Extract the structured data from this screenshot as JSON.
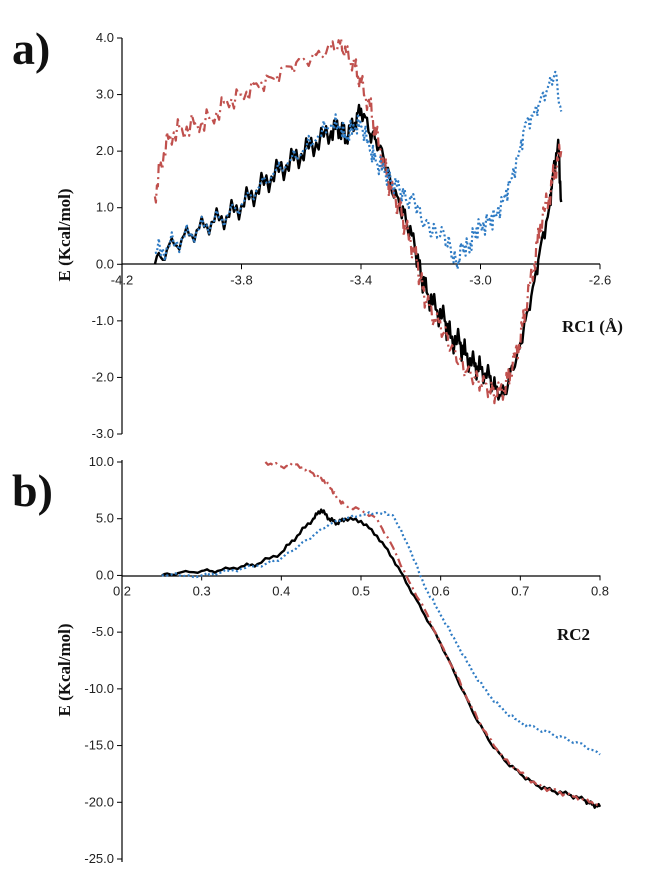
{
  "chart_data": [
    {
      "type": "line",
      "panel_label": "a)",
      "ylabel": "E (Kcal/mol)",
      "xlabel": "RC1 (Å)",
      "xlim": [
        -4.2,
        -2.6
      ],
      "ylim": [
        -3.0,
        4.0
      ],
      "x_ticks": [
        "-4.2",
        "-3.8",
        "-3.4",
        "-3.0",
        "-2.6"
      ],
      "x_tick_values": [
        -4.2,
        -3.8,
        -3.4,
        -3.0,
        -2.6
      ],
      "y_ticks": [
        "4.0",
        "3.0",
        "2.0",
        "1.0",
        "0.0",
        "-1.0",
        "-2.0",
        "-3.0"
      ],
      "y_tick_values": [
        4.0,
        3.0,
        2.0,
        1.0,
        0.0,
        -1.0,
        -2.0,
        -3.0
      ],
      "grid": false,
      "series": [
        {
          "style": "solid",
          "color": "#000000",
          "x": [
            -4.09,
            -4.05,
            -4.0,
            -3.95,
            -3.9,
            -3.85,
            -3.8,
            -3.75,
            -3.7,
            -3.65,
            -3.6,
            -3.55,
            -3.5,
            -3.47,
            -3.45,
            -3.42,
            -3.4,
            -3.37,
            -3.35,
            -3.32,
            -3.3,
            -3.27,
            -3.25,
            -3.22,
            -3.2,
            -3.18,
            -3.15,
            -3.12,
            -3.1,
            -3.07,
            -3.05,
            -3.02,
            -3.0,
            -2.97,
            -2.95,
            -2.92,
            -2.9,
            -2.87,
            -2.85,
            -2.82,
            -2.8,
            -2.77,
            -2.76,
            -2.74,
            -2.73
          ],
          "y": [
            0.0,
            0.25,
            0.45,
            0.6,
            0.75,
            0.85,
            1.05,
            1.3,
            1.55,
            1.75,
            1.95,
            2.15,
            2.35,
            2.4,
            2.25,
            2.5,
            2.75,
            2.3,
            2.2,
            1.8,
            1.4,
            1.0,
            0.8,
            0.3,
            -0.2,
            -0.5,
            -0.8,
            -1.0,
            -1.3,
            -1.4,
            -1.6,
            -1.8,
            -1.85,
            -2.0,
            -2.2,
            -2.3,
            -1.9,
            -1.5,
            -1.0,
            -0.3,
            0.3,
            1.0,
            1.5,
            2.2,
            1.1
          ]
        },
        {
          "style": "dashdot",
          "color": "#c0504d",
          "x": [
            -4.09,
            -4.07,
            -4.04,
            -4.0,
            -3.95,
            -3.9,
            -3.85,
            -3.8,
            -3.75,
            -3.7,
            -3.65,
            -3.6,
            -3.55,
            -3.5,
            -3.47,
            -3.45,
            -3.42,
            -3.4,
            -3.37,
            -3.35,
            -3.32,
            -3.3,
            -3.27,
            -3.25,
            -3.22,
            -3.2,
            -3.18,
            -3.15,
            -3.12,
            -3.1,
            -3.07,
            -3.05,
            -3.02,
            -3.0,
            -2.97,
            -2.95,
            -2.92,
            -2.9,
            -2.87,
            -2.85,
            -2.82,
            -2.8,
            -2.77,
            -2.75,
            -2.73
          ],
          "y": [
            1.2,
            1.8,
            2.3,
            2.4,
            2.5,
            2.6,
            2.9,
            3.0,
            3.2,
            3.3,
            3.5,
            3.6,
            3.7,
            3.85,
            3.9,
            3.75,
            3.5,
            3.2,
            2.8,
            2.3,
            1.7,
            1.3,
            1.0,
            0.6,
            0.2,
            -0.3,
            -0.7,
            -1.0,
            -1.2,
            -1.5,
            -1.7,
            -1.9,
            -2.0,
            -2.1,
            -2.2,
            -2.3,
            -2.2,
            -1.9,
            -1.4,
            -0.8,
            0.0,
            0.7,
            1.2,
            1.7,
            2.0
          ]
        },
        {
          "style": "dotted",
          "color": "#2e7bc4",
          "x": [
            -4.09,
            -4.05,
            -4.0,
            -3.95,
            -3.9,
            -3.85,
            -3.8,
            -3.75,
            -3.7,
            -3.65,
            -3.6,
            -3.55,
            -3.5,
            -3.47,
            -3.45,
            -3.42,
            -3.4,
            -3.37,
            -3.35,
            -3.32,
            -3.3,
            -3.27,
            -3.25,
            -3.22,
            -3.2,
            -3.17,
            -3.15,
            -3.12,
            -3.1,
            -3.08,
            -3.06,
            -3.04,
            -3.02,
            -3.0,
            -2.97,
            -2.95,
            -2.92,
            -2.9,
            -2.87,
            -2.85,
            -2.82,
            -2.8,
            -2.77,
            -2.75,
            -2.73
          ],
          "y": [
            0.2,
            0.3,
            0.45,
            0.6,
            0.75,
            0.85,
            1.05,
            1.3,
            1.55,
            1.75,
            1.95,
            2.2,
            2.45,
            2.4,
            2.2,
            2.4,
            2.45,
            2.0,
            1.8,
            1.6,
            1.45,
            1.3,
            1.15,
            1.1,
            0.85,
            0.6,
            0.6,
            0.5,
            0.3,
            0.0,
            0.35,
            0.3,
            0.6,
            0.7,
            0.8,
            0.9,
            1.2,
            1.5,
            2.0,
            2.5,
            2.7,
            2.9,
            3.2,
            3.4,
            2.7
          ]
        }
      ]
    },
    {
      "type": "line",
      "panel_label": "b)",
      "ylabel": "E (Kcal/mol)",
      "xlabel": "RC2",
      "xlim": [
        0.2,
        0.8
      ],
      "ylim": [
        -25.0,
        10.0
      ],
      "x_ticks": [
        "0.2",
        "0.3",
        "0.4",
        "0.5",
        "0.6",
        "0.7",
        "0.8"
      ],
      "x_tick_values": [
        0.2,
        0.3,
        0.4,
        0.5,
        0.6,
        0.7,
        0.8
      ],
      "y_ticks": [
        "10.0",
        "5.0",
        "0.0",
        "-5.0",
        "-10.0",
        "-15.0",
        "-20.0",
        "-25.0"
      ],
      "y_tick_values": [
        10.0,
        5.0,
        0.0,
        -5.0,
        -10.0,
        -15.0,
        -20.0,
        -25.0
      ],
      "grid": false,
      "series": [
        {
          "style": "solid",
          "color": "#000000",
          "x": [
            0.25,
            0.27,
            0.3,
            0.32,
            0.35,
            0.37,
            0.4,
            0.42,
            0.44,
            0.45,
            0.46,
            0.47,
            0.48,
            0.5,
            0.52,
            0.54,
            0.56,
            0.58,
            0.6,
            0.62,
            0.64,
            0.66,
            0.68,
            0.7,
            0.72,
            0.74,
            0.76,
            0.78,
            0.79,
            0.8
          ],
          "y": [
            0.0,
            0.2,
            0.4,
            0.4,
            0.8,
            1.0,
            2.0,
            3.5,
            5.0,
            5.8,
            5.0,
            4.6,
            5.0,
            4.8,
            3.5,
            1.5,
            -1.0,
            -3.5,
            -6.0,
            -9.0,
            -12.0,
            -14.5,
            -16.3,
            -17.5,
            -18.5,
            -19.0,
            -19.3,
            -19.8,
            -20.2,
            -20.4
          ]
        },
        {
          "style": "dashdot",
          "color": "#c0504d",
          "x": [
            0.38,
            0.4,
            0.42,
            0.44,
            0.45,
            0.46,
            0.47,
            0.48,
            0.5,
            0.52,
            0.54,
            0.56,
            0.58,
            0.6,
            0.62,
            0.64,
            0.66,
            0.68,
            0.7,
            0.72,
            0.74,
            0.76,
            0.78,
            0.8
          ],
          "y": [
            10.0,
            9.6,
            9.8,
            9.0,
            8.6,
            8.0,
            6.8,
            6.2,
            5.8,
            5.0,
            2.5,
            -0.5,
            -3.0,
            -6.0,
            -8.8,
            -11.8,
            -14.3,
            -16.2,
            -17.4,
            -18.4,
            -19.0,
            -19.3,
            -19.8,
            -20.3
          ]
        },
        {
          "style": "dotted",
          "color": "#2e7bc4",
          "x": [
            0.25,
            0.3,
            0.32,
            0.35,
            0.38,
            0.4,
            0.42,
            0.44,
            0.46,
            0.48,
            0.5,
            0.52,
            0.54,
            0.56,
            0.58,
            0.6,
            0.62,
            0.64,
            0.66,
            0.68,
            0.7,
            0.72,
            0.74,
            0.76,
            0.78,
            0.8
          ],
          "y": [
            0.0,
            0.0,
            0.2,
            0.6,
            1.0,
            1.5,
            2.5,
            3.5,
            4.5,
            5.0,
            5.3,
            5.5,
            5.3,
            2.5,
            -1.0,
            -3.5,
            -6.0,
            -8.5,
            -10.5,
            -12.0,
            -13.0,
            -13.5,
            -14.0,
            -14.5,
            -15.0,
            -15.8
          ]
        }
      ]
    }
  ]
}
